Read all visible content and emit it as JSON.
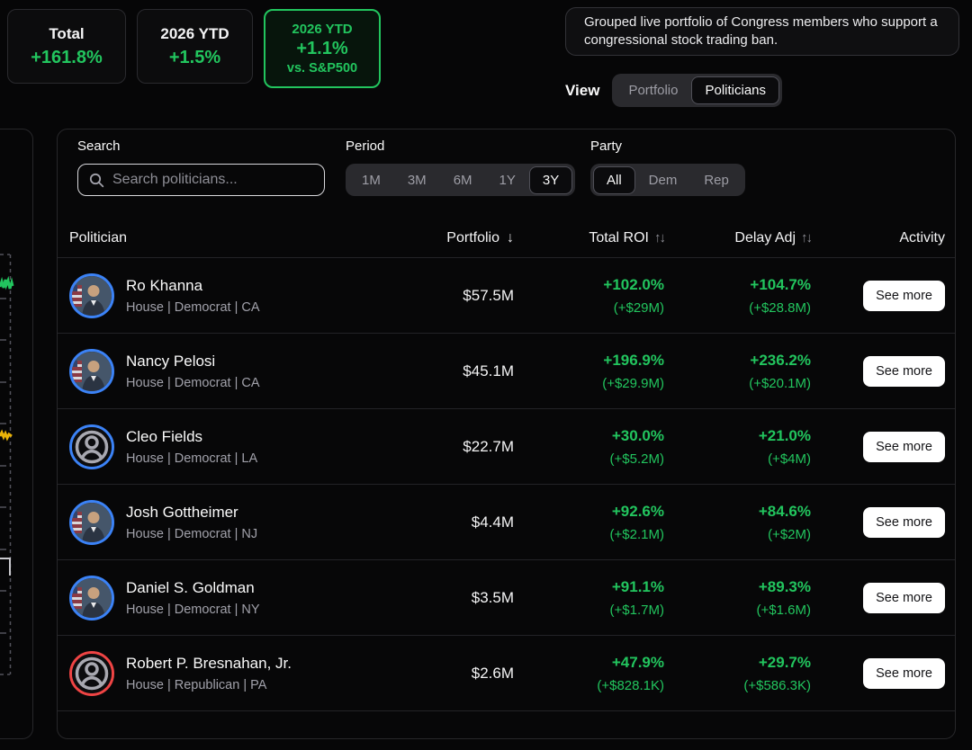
{
  "colors": {
    "background": "#060607",
    "accent_green": "#22c55e",
    "democrat_blue": "#3b82f6",
    "republican_red": "#ef4444",
    "trace_yellow": "#eab308"
  },
  "icons": {
    "search": "magnifier",
    "sort_desc": "↓",
    "sort_both": "↑↓"
  },
  "stats": [
    {
      "label": "Total",
      "value": "+161.8%"
    },
    {
      "label": "2026 YTD",
      "value": "+1.5%"
    },
    {
      "label": "2026 YTD",
      "value": "+1.1%",
      "sublabel": "vs. S&P500",
      "highlighted": true
    }
  ],
  "description": "Grouped live portfolio of Congress members who support a congressional stock trading ban.",
  "view": {
    "label": "View",
    "options": [
      "Portfolio",
      "Politicians"
    ],
    "selected": "Politicians"
  },
  "filters": {
    "search": {
      "label": "Search",
      "placeholder": "Search politicians...",
      "value": ""
    },
    "period": {
      "label": "Period",
      "options": [
        "1M",
        "3M",
        "6M",
        "1Y",
        "3Y"
      ],
      "selected": "3Y"
    },
    "party": {
      "label": "Party",
      "options": [
        "All",
        "Dem",
        "Rep"
      ],
      "selected": "All"
    }
  },
  "left_chart": {
    "visible": true,
    "style": "cut-off panel with dashed region and tick marks",
    "trace_colors": [
      "#22c55e",
      "#eab308",
      "#d4d4d8"
    ]
  },
  "table": {
    "headers": {
      "politician": "Politician",
      "portfolio": "Portfolio",
      "total_roi": "Total ROI",
      "delay_adj": "Delay Adj",
      "activity": "Activity"
    },
    "rows": [
      {
        "name": "Ro Khanna",
        "meta": "House | Democrat | CA",
        "party": "Democrat",
        "avatar": "photo",
        "portfolio": "$57.5M",
        "total_roi_pct": "+102.0%",
        "total_roi_amt": "(+$29M)",
        "delay_adj_pct": "+104.7%",
        "delay_adj_amt": "(+$28.8M)",
        "action": "See more"
      },
      {
        "name": "Nancy Pelosi",
        "meta": "House | Democrat | CA",
        "party": "Democrat",
        "avatar": "photo",
        "portfolio": "$45.1M",
        "total_roi_pct": "+196.9%",
        "total_roi_amt": "(+$29.9M)",
        "delay_adj_pct": "+236.2%",
        "delay_adj_amt": "(+$20.1M)",
        "action": "See more"
      },
      {
        "name": "Cleo Fields",
        "meta": "House | Democrat | LA",
        "party": "Democrat",
        "avatar": "generic",
        "portfolio": "$22.7M",
        "total_roi_pct": "+30.0%",
        "total_roi_amt": "(+$5.2M)",
        "delay_adj_pct": "+21.0%",
        "delay_adj_amt": "(+$4M)",
        "action": "See more"
      },
      {
        "name": "Josh Gottheimer",
        "meta": "House | Democrat | NJ",
        "party": "Democrat",
        "avatar": "photo",
        "portfolio": "$4.4M",
        "total_roi_pct": "+92.6%",
        "total_roi_amt": "(+$2.1M)",
        "delay_adj_pct": "+84.6%",
        "delay_adj_amt": "(+$2M)",
        "action": "See more"
      },
      {
        "name": "Daniel S. Goldman",
        "meta": "House | Democrat | NY",
        "party": "Democrat",
        "avatar": "photo",
        "portfolio": "$3.5M",
        "total_roi_pct": "+91.1%",
        "total_roi_amt": "(+$1.7M)",
        "delay_adj_pct": "+89.3%",
        "delay_adj_amt": "(+$1.6M)",
        "action": "See more"
      },
      {
        "name": "Robert P. Bresnahan, Jr.",
        "meta": "House | Republican | PA",
        "party": "Republican",
        "avatar": "generic",
        "portfolio": "$2.6M",
        "total_roi_pct": "+47.9%",
        "total_roi_amt": "(+$828.1K)",
        "delay_adj_pct": "+29.7%",
        "delay_adj_amt": "(+$586.3K)",
        "action": "See more"
      }
    ]
  }
}
